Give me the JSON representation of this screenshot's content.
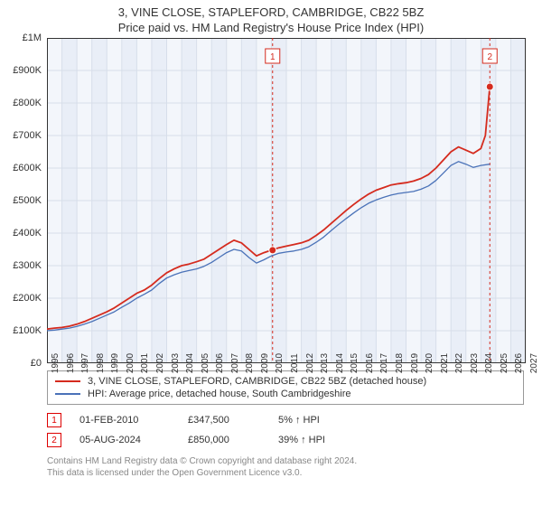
{
  "title_line1": "3, VINE CLOSE, STAPLEFORD, CAMBRIDGE, CB22 5BZ",
  "title_line2": "Price paid vs. HM Land Registry's House Price Index (HPI)",
  "chart": {
    "type": "line",
    "background_color": "#f3f6fb",
    "alt_band_color": "#e9eef7",
    "grid_color": "#d7deea",
    "axis_color": "#333333",
    "x_start": 1995,
    "x_end": 2027,
    "x_ticks": [
      1995,
      1996,
      1997,
      1998,
      1999,
      2000,
      2001,
      2002,
      2003,
      2004,
      2005,
      2006,
      2007,
      2008,
      2009,
      2010,
      2011,
      2012,
      2013,
      2014,
      2015,
      2016,
      2017,
      2018,
      2019,
      2020,
      2021,
      2022,
      2023,
      2024,
      2025,
      2026,
      2027
    ],
    "y_min": 0,
    "y_max": 1000000,
    "y_tick_step": 100000,
    "y_tick_labels": [
      "£0",
      "£100K",
      "£200K",
      "£300K",
      "£400K",
      "£500K",
      "£600K",
      "£700K",
      "£800K",
      "£900K",
      "£1M"
    ],
    "series": [
      {
        "name": "price_paid",
        "legend": "3, VINE CLOSE, STAPLEFORD, CAMBRIDGE, CB22 5BZ (detached house)",
        "color": "#d52b1e",
        "width": 1.8,
        "points": [
          [
            1995.0,
            105000
          ],
          [
            1995.5,
            108000
          ],
          [
            1996.0,
            110000
          ],
          [
            1996.5,
            114000
          ],
          [
            1997.0,
            120000
          ],
          [
            1997.5,
            128000
          ],
          [
            1998.0,
            138000
          ],
          [
            1998.5,
            148000
          ],
          [
            1999.0,
            158000
          ],
          [
            1999.5,
            170000
          ],
          [
            2000.0,
            185000
          ],
          [
            2000.5,
            200000
          ],
          [
            2001.0,
            215000
          ],
          [
            2001.5,
            225000
          ],
          [
            2002.0,
            240000
          ],
          [
            2002.5,
            260000
          ],
          [
            2003.0,
            278000
          ],
          [
            2003.5,
            290000
          ],
          [
            2004.0,
            300000
          ],
          [
            2004.5,
            305000
          ],
          [
            2005.0,
            312000
          ],
          [
            2005.5,
            320000
          ],
          [
            2006.0,
            335000
          ],
          [
            2006.5,
            350000
          ],
          [
            2007.0,
            365000
          ],
          [
            2007.5,
            378000
          ],
          [
            2008.0,
            370000
          ],
          [
            2008.5,
            350000
          ],
          [
            2009.0,
            330000
          ],
          [
            2009.5,
            340000
          ],
          [
            2010.0,
            347500
          ],
          [
            2010.5,
            355000
          ],
          [
            2011.0,
            360000
          ],
          [
            2011.5,
            365000
          ],
          [
            2012.0,
            370000
          ],
          [
            2012.5,
            378000
          ],
          [
            2013.0,
            393000
          ],
          [
            2013.5,
            410000
          ],
          [
            2014.0,
            430000
          ],
          [
            2014.5,
            450000
          ],
          [
            2015.0,
            470000
          ],
          [
            2015.5,
            488000
          ],
          [
            2016.0,
            505000
          ],
          [
            2016.5,
            520000
          ],
          [
            2017.0,
            532000
          ],
          [
            2017.5,
            540000
          ],
          [
            2018.0,
            548000
          ],
          [
            2018.5,
            552000
          ],
          [
            2019.0,
            555000
          ],
          [
            2019.5,
            560000
          ],
          [
            2020.0,
            568000
          ],
          [
            2020.5,
            580000
          ],
          [
            2021.0,
            600000
          ],
          [
            2021.5,
            625000
          ],
          [
            2022.0,
            650000
          ],
          [
            2022.5,
            665000
          ],
          [
            2023.0,
            655000
          ],
          [
            2023.5,
            645000
          ],
          [
            2024.0,
            660000
          ],
          [
            2024.3,
            700000
          ],
          [
            2024.6,
            850000
          ]
        ]
      },
      {
        "name": "hpi",
        "legend": "HPI: Average price, detached house, South Cambridgeshire",
        "color": "#4a72b8",
        "width": 1.3,
        "points": [
          [
            1995.0,
            100000
          ],
          [
            1995.5,
            102000
          ],
          [
            1996.0,
            105000
          ],
          [
            1996.5,
            108000
          ],
          [
            1997.0,
            113000
          ],
          [
            1997.5,
            120000
          ],
          [
            1998.0,
            128000
          ],
          [
            1998.5,
            138000
          ],
          [
            1999.0,
            148000
          ],
          [
            1999.5,
            158000
          ],
          [
            2000.0,
            172000
          ],
          [
            2000.5,
            185000
          ],
          [
            2001.0,
            200000
          ],
          [
            2001.5,
            212000
          ],
          [
            2002.0,
            225000
          ],
          [
            2002.5,
            245000
          ],
          [
            2003.0,
            262000
          ],
          [
            2003.5,
            272000
          ],
          [
            2004.0,
            280000
          ],
          [
            2004.5,
            285000
          ],
          [
            2005.0,
            290000
          ],
          [
            2005.5,
            298000
          ],
          [
            2006.0,
            310000
          ],
          [
            2006.5,
            325000
          ],
          [
            2007.0,
            340000
          ],
          [
            2007.5,
            350000
          ],
          [
            2008.0,
            345000
          ],
          [
            2008.5,
            325000
          ],
          [
            2009.0,
            308000
          ],
          [
            2009.5,
            318000
          ],
          [
            2010.0,
            330000
          ],
          [
            2010.5,
            338000
          ],
          [
            2011.0,
            342000
          ],
          [
            2011.5,
            345000
          ],
          [
            2012.0,
            350000
          ],
          [
            2012.5,
            358000
          ],
          [
            2013.0,
            372000
          ],
          [
            2013.5,
            388000
          ],
          [
            2014.0,
            408000
          ],
          [
            2014.5,
            427000
          ],
          [
            2015.0,
            445000
          ],
          [
            2015.5,
            462000
          ],
          [
            2016.0,
            478000
          ],
          [
            2016.5,
            492000
          ],
          [
            2017.0,
            502000
          ],
          [
            2017.5,
            510000
          ],
          [
            2018.0,
            517000
          ],
          [
            2018.5,
            522000
          ],
          [
            2019.0,
            525000
          ],
          [
            2019.5,
            528000
          ],
          [
            2020.0,
            535000
          ],
          [
            2020.5,
            545000
          ],
          [
            2021.0,
            562000
          ],
          [
            2021.5,
            585000
          ],
          [
            2022.0,
            608000
          ],
          [
            2022.5,
            620000
          ],
          [
            2023.0,
            612000
          ],
          [
            2023.5,
            602000
          ],
          [
            2024.0,
            608000
          ],
          [
            2024.6,
            612000
          ]
        ]
      }
    ],
    "markers": [
      {
        "id": "1",
        "x": 2010.08,
        "y": 347500,
        "color": "#d52b1e"
      },
      {
        "id": "2",
        "x": 2024.6,
        "y": 850000,
        "color": "#d52b1e"
      }
    ],
    "marker_label_y_top_offset": 12
  },
  "legend": {
    "rows": [
      {
        "color": "#d52b1e",
        "text": "3, VINE CLOSE, STAPLEFORD, CAMBRIDGE, CB22 5BZ (detached house)"
      },
      {
        "color": "#4a72b8",
        "text": "HPI: Average price, detached house, South Cambridgeshire"
      }
    ]
  },
  "data_rows": [
    {
      "marker": "1",
      "date": "01-FEB-2010",
      "price": "£347,500",
      "pct": "5% ↑ HPI"
    },
    {
      "marker": "2",
      "date": "05-AUG-2024",
      "price": "£850,000",
      "pct": "39% ↑ HPI"
    }
  ],
  "footer_line1": "Contains HM Land Registry data © Crown copyright and database right 2024.",
  "footer_line2": "This data is licensed under the Open Government Licence v3.0."
}
